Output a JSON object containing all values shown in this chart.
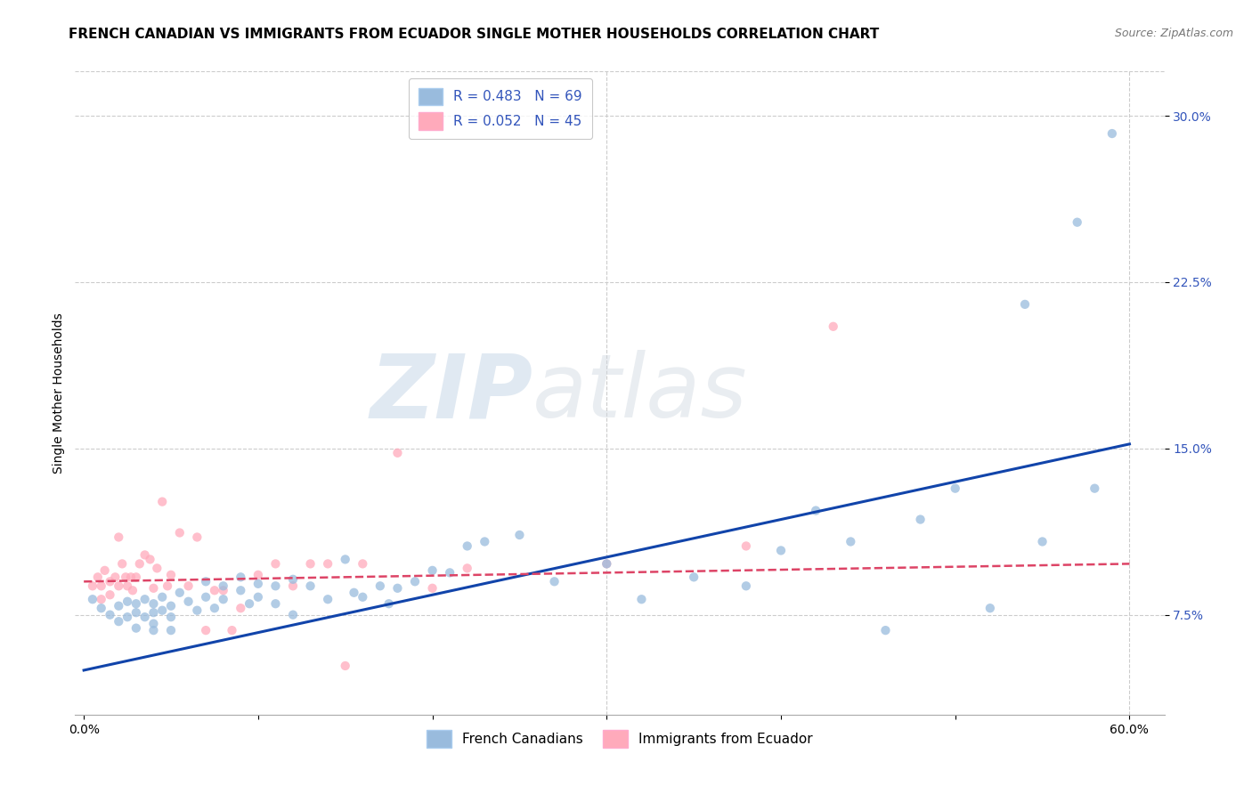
{
  "title": "FRENCH CANADIAN VS IMMIGRANTS FROM ECUADOR SINGLE MOTHER HOUSEHOLDS CORRELATION CHART",
  "source": "Source: ZipAtlas.com",
  "ylabel": "Single Mother Households",
  "blue_color": "#99BBDD",
  "pink_color": "#FFAABB",
  "trend_blue": "#1144AA",
  "trend_pink": "#DD4466",
  "R_blue": 0.483,
  "N_blue": 69,
  "R_pink": 0.052,
  "N_pink": 45,
  "legend_labels": [
    "French Canadians",
    "Immigrants from Ecuador"
  ],
  "watermark_zip": "ZIP",
  "watermark_atlas": "atlas",
  "blue_scatter_x": [
    0.005,
    0.01,
    0.015,
    0.02,
    0.02,
    0.025,
    0.025,
    0.03,
    0.03,
    0.03,
    0.035,
    0.035,
    0.04,
    0.04,
    0.04,
    0.04,
    0.045,
    0.045,
    0.05,
    0.05,
    0.05,
    0.055,
    0.06,
    0.065,
    0.07,
    0.07,
    0.075,
    0.08,
    0.08,
    0.09,
    0.09,
    0.095,
    0.1,
    0.1,
    0.11,
    0.11,
    0.12,
    0.12,
    0.13,
    0.14,
    0.15,
    0.155,
    0.16,
    0.17,
    0.175,
    0.18,
    0.19,
    0.2,
    0.21,
    0.22,
    0.23,
    0.25,
    0.27,
    0.3,
    0.32,
    0.35,
    0.38,
    0.4,
    0.42,
    0.44,
    0.46,
    0.48,
    0.5,
    0.52,
    0.54,
    0.55,
    0.57,
    0.58,
    0.59
  ],
  "blue_scatter_y": [
    0.082,
    0.078,
    0.075,
    0.079,
    0.072,
    0.081,
    0.074,
    0.08,
    0.076,
    0.069,
    0.082,
    0.074,
    0.08,
    0.076,
    0.071,
    0.068,
    0.083,
    0.077,
    0.079,
    0.074,
    0.068,
    0.085,
    0.081,
    0.077,
    0.09,
    0.083,
    0.078,
    0.088,
    0.082,
    0.092,
    0.086,
    0.08,
    0.089,
    0.083,
    0.088,
    0.08,
    0.091,
    0.075,
    0.088,
    0.082,
    0.1,
    0.085,
    0.083,
    0.088,
    0.08,
    0.087,
    0.09,
    0.095,
    0.094,
    0.106,
    0.108,
    0.111,
    0.09,
    0.098,
    0.082,
    0.092,
    0.088,
    0.104,
    0.122,
    0.108,
    0.068,
    0.118,
    0.132,
    0.078,
    0.215,
    0.108,
    0.252,
    0.132,
    0.292
  ],
  "pink_scatter_x": [
    0.005,
    0.008,
    0.01,
    0.01,
    0.012,
    0.015,
    0.015,
    0.018,
    0.02,
    0.02,
    0.022,
    0.024,
    0.025,
    0.027,
    0.028,
    0.03,
    0.032,
    0.035,
    0.038,
    0.04,
    0.042,
    0.045,
    0.048,
    0.05,
    0.055,
    0.06,
    0.065,
    0.07,
    0.075,
    0.08,
    0.085,
    0.09,
    0.1,
    0.11,
    0.12,
    0.13,
    0.14,
    0.15,
    0.16,
    0.18,
    0.2,
    0.22,
    0.3,
    0.38,
    0.43
  ],
  "pink_scatter_y": [
    0.088,
    0.092,
    0.088,
    0.082,
    0.095,
    0.09,
    0.084,
    0.092,
    0.088,
    0.11,
    0.098,
    0.092,
    0.088,
    0.092,
    0.086,
    0.092,
    0.098,
    0.102,
    0.1,
    0.087,
    0.096,
    0.126,
    0.088,
    0.093,
    0.112,
    0.088,
    0.11,
    0.068,
    0.086,
    0.086,
    0.068,
    0.078,
    0.093,
    0.098,
    0.088,
    0.098,
    0.098,
    0.052,
    0.098,
    0.148,
    0.087,
    0.096,
    0.098,
    0.106,
    0.205
  ],
  "blue_trend_x": [
    0.0,
    0.6
  ],
  "blue_trend_y": [
    0.05,
    0.152
  ],
  "pink_trend_x": [
    0.0,
    0.6
  ],
  "pink_trend_y": [
    0.09,
    0.098
  ],
  "xlim": [
    -0.005,
    0.62
  ],
  "ylim": [
    0.03,
    0.32
  ],
  "y_ticks": [
    0.075,
    0.15,
    0.225,
    0.3
  ],
  "y_tick_labels": [
    "7.5%",
    "15.0%",
    "22.5%",
    "30.0%"
  ],
  "x_ticks": [
    0.0,
    0.1,
    0.2,
    0.3,
    0.4,
    0.5,
    0.6
  ],
  "x_tick_labels": [
    "0.0%",
    "",
    "",
    "",
    "",
    "",
    "60.0%"
  ],
  "figsize": [
    14.06,
    8.92
  ],
  "dpi": 100,
  "background_color": "#FFFFFF",
  "grid_color": "#CCCCCC",
  "tick_color_y": "#3355BB",
  "title_fontsize": 11,
  "axis_label_fontsize": 10,
  "tick_fontsize": 10,
  "legend_fontsize": 11,
  "scatter_size": 55,
  "scatter_alpha": 0.75
}
